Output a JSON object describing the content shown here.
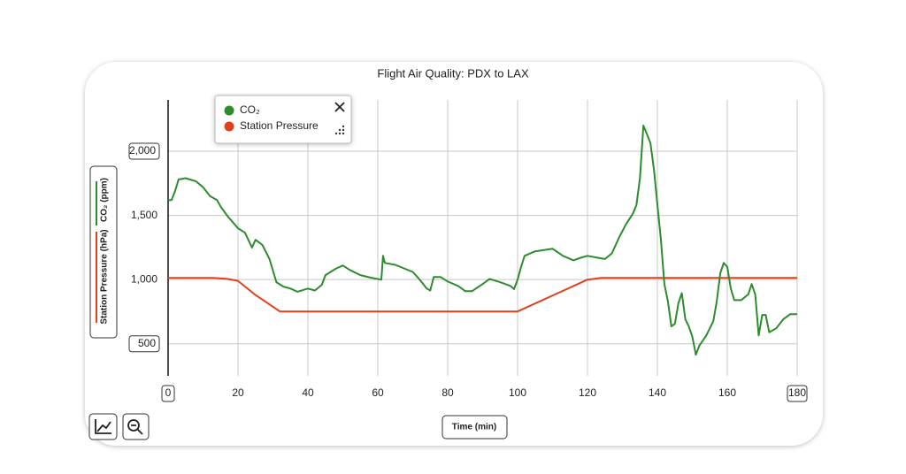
{
  "chart_data": {
    "type": "line",
    "title": "Flight Air Quality: PDX to LAX",
    "x_label": "Time (min)",
    "y_labels": [
      "CO₂ (ppm)",
      "Station Pressure (hPa)"
    ],
    "xlim": [
      0,
      180
    ],
    "xticks": [
      0,
      20,
      40,
      60,
      80,
      100,
      120,
      140,
      160,
      180
    ],
    "ylim": [
      250,
      2400
    ],
    "yticks": [
      {
        "value": 500,
        "label": "500"
      },
      {
        "value": 1000,
        "label": "1,000"
      },
      {
        "value": 1500,
        "label": "1,500"
      },
      {
        "value": 2000,
        "label": "2,000"
      }
    ],
    "grid": true,
    "legend": "upper left",
    "series": [
      {
        "name": "CO₂",
        "color": "#2e8b2e",
        "x": [
          0,
          1,
          2,
          3,
          5,
          8,
          10,
          12,
          14,
          15,
          17,
          20,
          22,
          24,
          25,
          27,
          29,
          31,
          33,
          35,
          37,
          40,
          42,
          44,
          45,
          48,
          50,
          52,
          55,
          58,
          61,
          61.5,
          62,
          65,
          70,
          72,
          74,
          75,
          76,
          78,
          80,
          83,
          85,
          87,
          90,
          92,
          95,
          98,
          99,
          100,
          101,
          102,
          105,
          110,
          113,
          116,
          118,
          120,
          123,
          125,
          127,
          129,
          131,
          133,
          134,
          135,
          136,
          137,
          138,
          139,
          140,
          141,
          142,
          143,
          144,
          145,
          146,
          147,
          148,
          149,
          150,
          151,
          152,
          154,
          156,
          157,
          158,
          159,
          160,
          161,
          162,
          164,
          166,
          167,
          168,
          169,
          170,
          171,
          172,
          174,
          176,
          178,
          180
        ],
        "values": [
          1619,
          1620,
          1690,
          1780,
          1790,
          1765,
          1720,
          1650,
          1620,
          1570,
          1495,
          1400,
          1365,
          1250,
          1310,
          1270,
          1160,
          980,
          945,
          930,
          905,
          930,
          915,
          960,
          1035,
          1085,
          1110,
          1075,
          1035,
          1015,
          1000,
          1185,
          1130,
          1115,
          1060,
          1000,
          930,
          915,
          1020,
          1020,
          985,
          950,
          910,
          910,
          965,
          1005,
          980,
          950,
          925,
          1000,
          1100,
          1185,
          1220,
          1240,
          1185,
          1150,
          1170,
          1185,
          1170,
          1160,
          1205,
          1325,
          1430,
          1515,
          1580,
          1790,
          2200,
          2135,
          2065,
          1860,
          1585,
          1310,
          965,
          830,
          635,
          655,
          815,
          895,
          690,
          635,
          555,
          415,
          485,
          565,
          675,
          830,
          1050,
          1130,
          1100,
          930,
          840,
          840,
          885,
          965,
          885,
          565,
          725,
          725,
          590,
          620,
          690,
          730,
          730
        ]
      },
      {
        "name": "Station Pressure",
        "color": "#e0401c",
        "x": [
          0,
          13,
          17,
          20,
          25,
          32,
          100,
          120,
          124,
          180
        ],
        "values": [
          1013,
          1013,
          1005,
          990,
          880,
          752,
          752,
          1000,
          1013,
          1013
        ]
      }
    ]
  }
}
